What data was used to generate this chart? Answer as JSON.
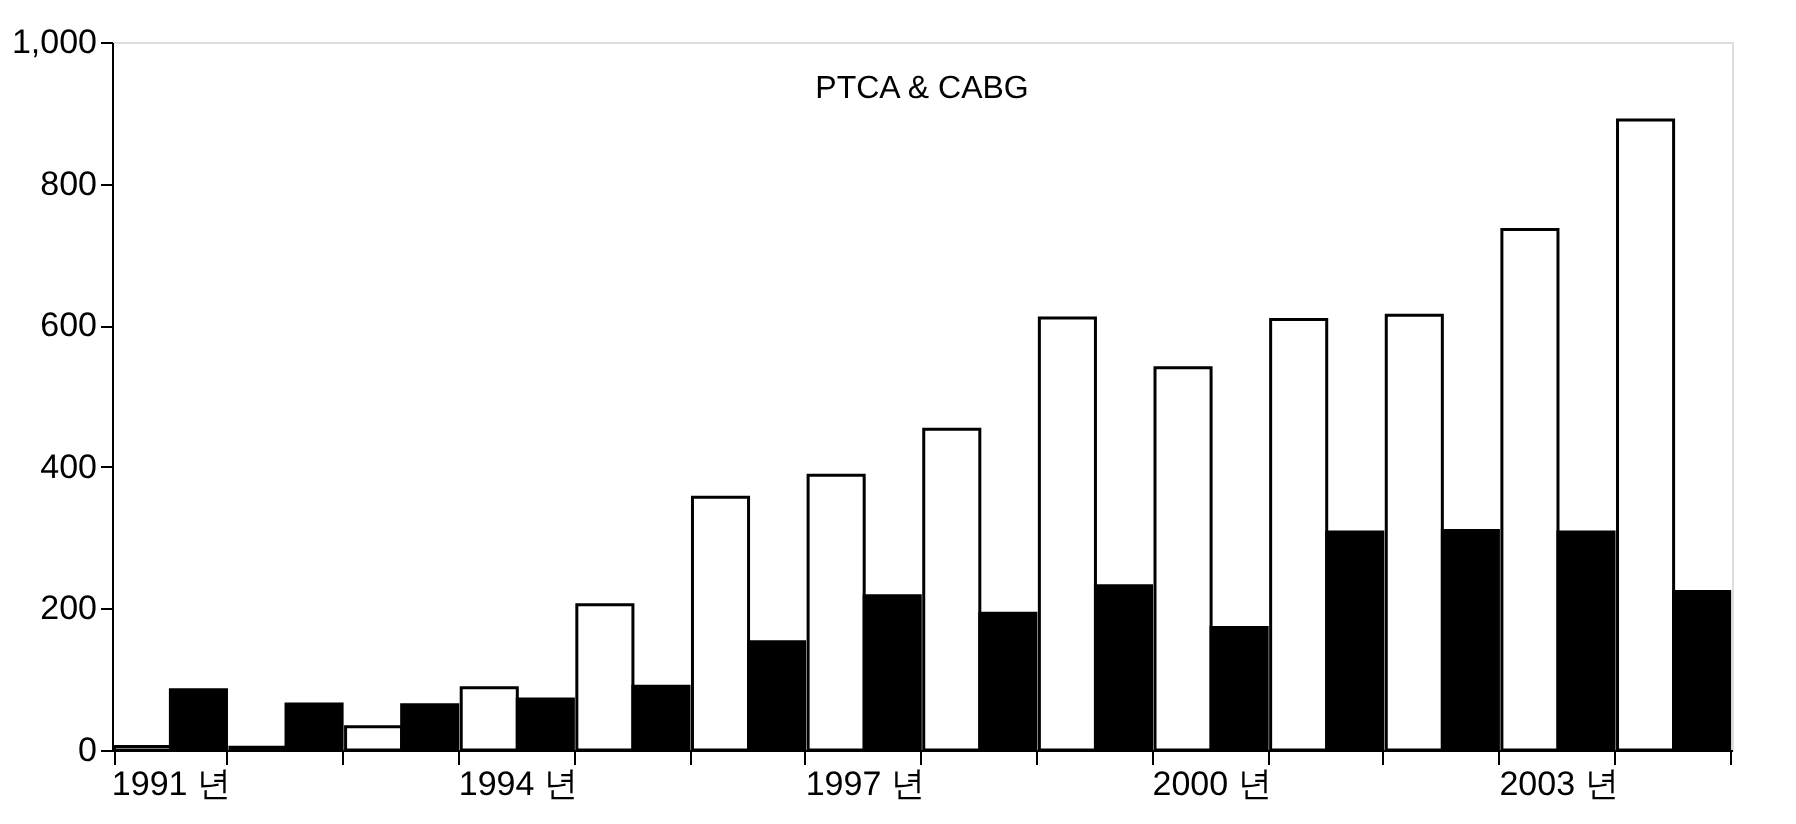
{
  "chart_data": {
    "type": "bar",
    "title": "PTCA & CABG",
    "categories": [
      "1991 년",
      null,
      null,
      "1994 년",
      null,
      null,
      "1997 년",
      null,
      null,
      "2000 년",
      null,
      null,
      "2003 년",
      null
    ],
    "series": [
      {
        "color": "#ffffff",
        "values": [
          5,
          4,
          33,
          88,
          205,
          357,
          388,
          453,
          610,
          540,
          608,
          614,
          735,
          890
        ]
      },
      {
        "color": "#000000",
        "values": [
          85,
          65,
          64,
          72,
          90,
          153,
          218,
          193,
          232,
          173,
          308,
          310,
          308,
          224
        ]
      }
    ],
    "ylim": [
      0,
      1000
    ],
    "yticks": [
      0,
      200,
      400,
      600,
      800,
      {
        "value": 1000,
        "label": "1,000"
      }
    ],
    "grid": false,
    "legend": false
  }
}
